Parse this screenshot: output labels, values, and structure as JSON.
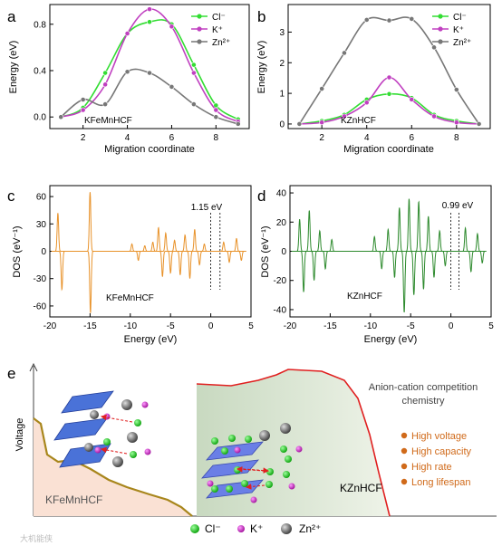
{
  "chart_data": [
    {
      "panel": "a",
      "type": "line",
      "xlabel": "Migration coordinate",
      "ylabel": "Energy (eV)",
      "xlim": [
        0.5,
        9.5
      ],
      "ylim": [
        -0.1,
        0.97
      ],
      "xticks": [
        2,
        4,
        6,
        8
      ],
      "yticks": [
        0.0,
        0.4,
        0.8
      ],
      "ytick_labels": [
        "0.0",
        "0.4",
        "0.8"
      ],
      "annotation": "KFeMnHCF",
      "legend_position": "top-right",
      "x": [
        1,
        2,
        3,
        4,
        5,
        6,
        7,
        8,
        9
      ],
      "series": [
        {
          "name": "Cl⁻",
          "color": "#33dd33",
          "values": [
            0.0,
            0.08,
            0.38,
            0.72,
            0.82,
            0.8,
            0.45,
            0.1,
            -0.02
          ]
        },
        {
          "name": "K⁺",
          "color": "#c040c0",
          "values": [
            0.0,
            0.06,
            0.28,
            0.72,
            0.93,
            0.78,
            0.38,
            0.06,
            -0.04
          ]
        },
        {
          "name": "Zn²⁺",
          "color": "#777777",
          "values": [
            0.0,
            0.15,
            0.11,
            0.39,
            0.38,
            0.26,
            0.11,
            0.0,
            -0.06
          ]
        }
      ]
    },
    {
      "panel": "b",
      "type": "line",
      "xlabel": "Migration coordinate",
      "ylabel": "Energy (eV)",
      "xlim": [
        0.5,
        9.5
      ],
      "ylim": [
        -0.15,
        3.9
      ],
      "xticks": [
        2,
        4,
        6,
        8
      ],
      "yticks": [
        0,
        1,
        2,
        3
      ],
      "ytick_labels": [
        "0",
        "1",
        "2",
        "3"
      ],
      "annotation": "KZnHCF",
      "legend_position": "top-right",
      "x": [
        1,
        2,
        3,
        4,
        5,
        6,
        7,
        8,
        9
      ],
      "series": [
        {
          "name": "Cl⁻",
          "color": "#33dd33",
          "values": [
            0.0,
            0.1,
            0.3,
            0.8,
            0.98,
            0.85,
            0.3,
            0.1,
            0.0
          ]
        },
        {
          "name": "K⁺",
          "color": "#c040c0",
          "values": [
            0.0,
            0.05,
            0.25,
            0.7,
            1.52,
            0.8,
            0.25,
            0.05,
            0.0
          ]
        },
        {
          "name": "Zn²⁺",
          "color": "#777777",
          "values": [
            0.0,
            1.15,
            2.32,
            3.4,
            3.38,
            3.43,
            2.5,
            1.12,
            0.0
          ]
        }
      ]
    },
    {
      "panel": "c",
      "type": "line",
      "xlabel": "Energy (eV)",
      "ylabel": "DOS (eV⁻¹)",
      "xlim": [
        -20,
        5
      ],
      "ylim": [
        -72,
        72
      ],
      "xticks": [
        -20,
        -15,
        -10,
        -5,
        0,
        5
      ],
      "yticks": [
        -60,
        -30,
        0,
        30,
        60
      ],
      "color": "#e8922a",
      "annotation": "KFeMnHCF",
      "gap_label": "1.15 eV",
      "gap_edges": [
        0,
        1.15
      ],
      "peaks": [
        [
          -19.0,
          42
        ],
        [
          -18.5,
          -42
        ],
        [
          -15.0,
          65
        ],
        [
          -14.95,
          -68
        ],
        [
          -9.8,
          8
        ],
        [
          -9.0,
          -10
        ],
        [
          -8.2,
          6
        ],
        [
          -7.2,
          10
        ],
        [
          -6.5,
          26
        ],
        [
          -6.0,
          -28
        ],
        [
          -5.6,
          20
        ],
        [
          -5.0,
          -24
        ],
        [
          -4.5,
          12
        ],
        [
          -3.8,
          -26
        ],
        [
          -3.2,
          18
        ],
        [
          -2.6,
          -30
        ],
        [
          -2.0,
          24
        ],
        [
          -1.4,
          -15
        ],
        [
          -0.8,
          8
        ],
        [
          1.6,
          10
        ],
        [
          2.3,
          -12
        ],
        [
          3.2,
          14
        ],
        [
          3.8,
          -10
        ]
      ]
    },
    {
      "panel": "d",
      "type": "line",
      "xlabel": "Energy (eV)",
      "ylabel": "DOS (eV⁻¹)",
      "xlim": [
        -20,
        5
      ],
      "ylim": [
        -45,
        45
      ],
      "xticks": [
        -20,
        -15,
        -10,
        -5,
        0,
        5
      ],
      "yticks": [
        -40,
        -20,
        0,
        20,
        40
      ],
      "color": "#2d8a2d",
      "annotation": "KZnHCF",
      "gap_label": "0.99 eV",
      "gap_edges": [
        0,
        0.99
      ],
      "peaks": [
        [
          -18.8,
          22
        ],
        [
          -18.3,
          -28
        ],
        [
          -17.6,
          28
        ],
        [
          -17.0,
          -20
        ],
        [
          -16.3,
          14
        ],
        [
          -15.6,
          -12
        ],
        [
          -14.8,
          8
        ],
        [
          -9.5,
          10
        ],
        [
          -8.6,
          -12
        ],
        [
          -7.8,
          15
        ],
        [
          -7.0,
          -18
        ],
        [
          -6.4,
          30
        ],
        [
          -5.8,
          -42
        ],
        [
          -5.2,
          36
        ],
        [
          -4.6,
          -30
        ],
        [
          -4.0,
          34
        ],
        [
          -3.4,
          -26
        ],
        [
          -2.8,
          24
        ],
        [
          -2.1,
          -18
        ],
        [
          -1.4,
          14
        ],
        [
          -0.7,
          -10
        ],
        [
          1.8,
          16
        ],
        [
          2.5,
          -14
        ],
        [
          3.3,
          12
        ],
        [
          3.9,
          -8
        ]
      ]
    }
  ],
  "panel_labels": [
    "a",
    "b",
    "c",
    "d",
    "e"
  ],
  "schematic": {
    "y_axis_label": "Voltage",
    "left_label": "KFeMnHCF",
    "right_label": "KZnHCF",
    "title_line1": "Anion-cation competition",
    "title_line2": "chemistry",
    "bullets": [
      "High voltage",
      "High capacity",
      "High rate",
      "Long lifespan"
    ],
    "bullet_color": "#d06a1a",
    "legend": [
      {
        "name": "Cl⁻",
        "color": "#22cc22"
      },
      {
        "name": "K⁺",
        "color": "#cc33cc"
      },
      {
        "name": "Zn²⁺",
        "color": "#666666"
      }
    ]
  },
  "watermark": "大机能侠"
}
